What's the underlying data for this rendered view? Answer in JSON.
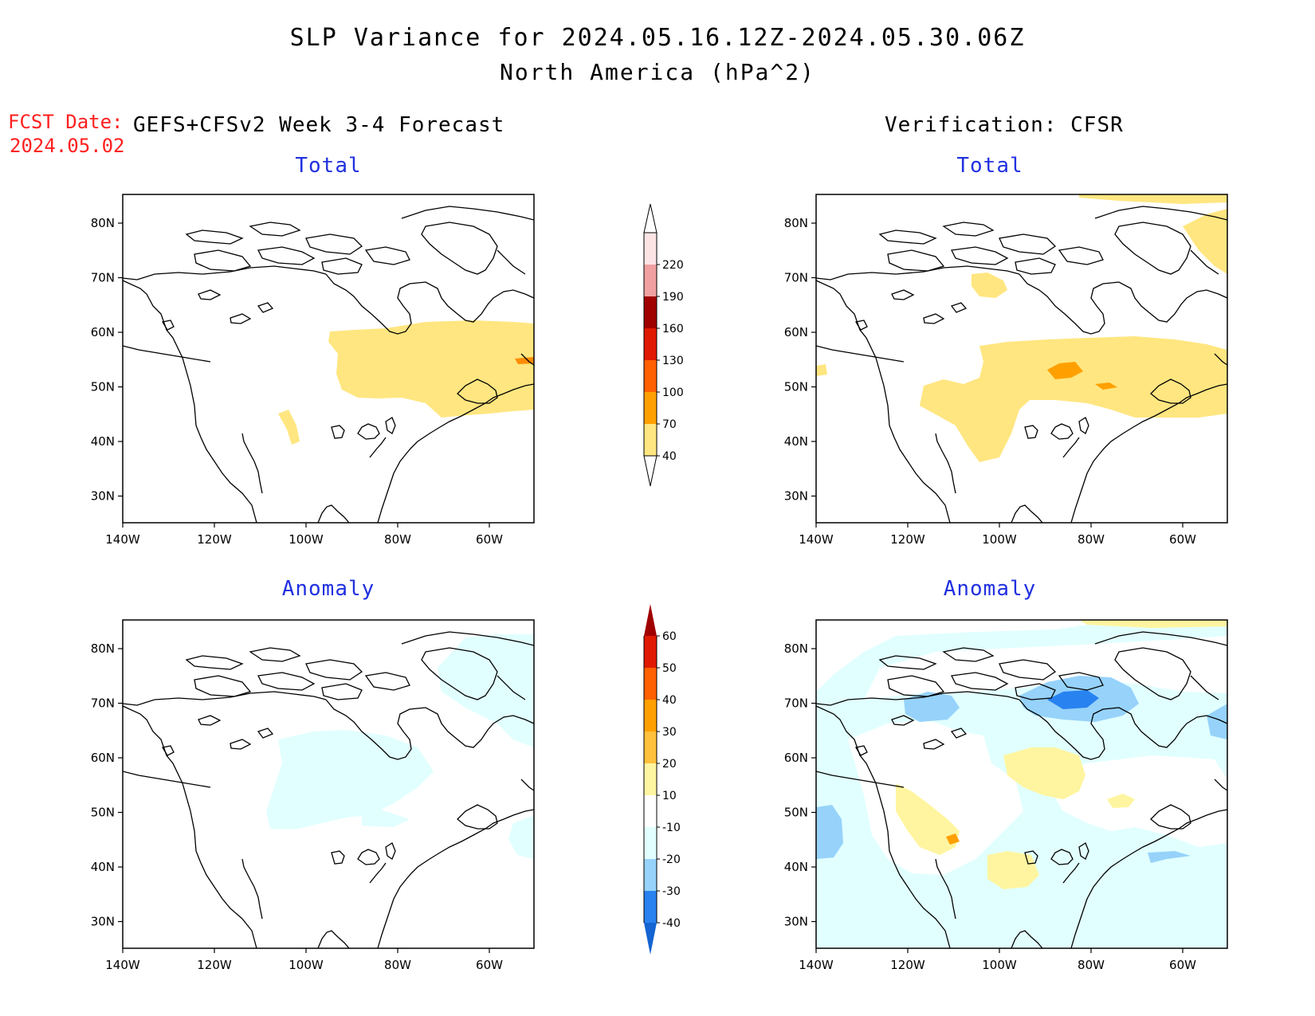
{
  "title_line1": "SLP Variance for 2024.05.16.12Z-2024.05.30.06Z",
  "title_line2": "North America (hPa^2)",
  "fcst_label": "FCST Date:",
  "fcst_date": "2024.05.02",
  "left_column_title": "GEFS+CFSv2 Week 3-4 Forecast",
  "right_column_title": "Verification: CFSR",
  "panels": {
    "fcst_total_title": "Total",
    "fcst_anom_title": "Anomaly",
    "verif_total_title": "Total",
    "verif_anom_title": "Anomaly"
  },
  "map": {
    "lon_labels": [
      "140W",
      "120W",
      "100W",
      "80W",
      "60W"
    ],
    "lat_labels": [
      "80N",
      "70N",
      "60N",
      "50N",
      "40N",
      "30N"
    ]
  },
  "colorbar_total": {
    "levels": [
      "40",
      "70",
      "100",
      "130",
      "160",
      "190",
      "220"
    ],
    "colors": [
      "#ffe680",
      "#ffa000",
      "#ff6000",
      "#e01a00",
      "#a00000",
      "#f0a0a0",
      "#fde4e4"
    ]
  },
  "colorbar_anomaly": {
    "levels": [
      "-40",
      "-30",
      "-20",
      "-10",
      "10",
      "20",
      "30",
      "40",
      "50",
      "60"
    ],
    "colors": [
      "#1464d2",
      "#2882f0",
      "#96d2fa",
      "#e1ffff",
      "#ffffff",
      "#fff5a0",
      "#ffc03c",
      "#ffa000",
      "#ff6000",
      "#e01a00",
      "#a00000"
    ]
  }
}
